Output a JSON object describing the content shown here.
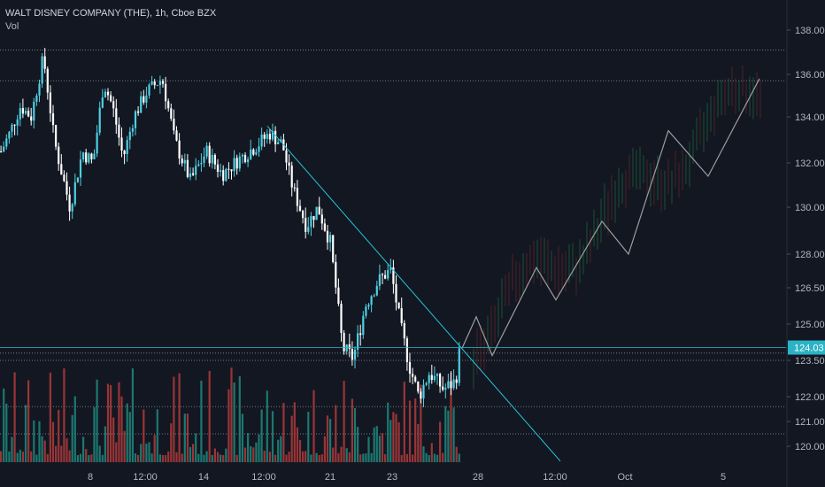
{
  "header": {
    "symbol_line": "WALT DISNEY COMPANY (THE), 1h, Cboe BZX",
    "volume_label": "Vol"
  },
  "colors": {
    "background": "#131722",
    "up": "#4dd0e1",
    "down": "#ffffff",
    "vol_up": "#1f8a7e",
    "vol_down": "#b23b3b",
    "trendline": "#26c6da",
    "projection": "#9e9e9e",
    "price_badge": "#2ab3c6",
    "grid": "#787b86",
    "text": "#b2b5be"
  },
  "chart_data": {
    "type": "candlestick",
    "title": "WALT DISNEY COMPANY (THE), 1h, Cboe BZX",
    "y_axis": {
      "ticks": [
        120.0,
        121.0,
        122.0,
        123.5,
        125.0,
        126.5,
        128.0,
        130.0,
        132.0,
        134.0,
        136.0,
        138.0
      ]
    },
    "x_axis": {
      "ticks": [
        "8",
        "12:00",
        "14",
        "12:00",
        "21",
        "23",
        "28",
        "12:00",
        "Oct",
        "5"
      ]
    },
    "current_price": "124.03",
    "horizontal_levels": [
      137.1,
      135.7,
      123.8,
      123.5,
      121.6,
      120.5
    ],
    "trendline": {
      "from_price": 133.6,
      "to_price": 119.4
    },
    "projection_path": [
      124.0,
      125.3,
      123.7,
      127.4,
      126.0,
      129.4,
      128.0,
      133.4,
      131.4,
      135.8
    ],
    "last_candle": {
      "open": 123.2,
      "high": 124.2,
      "low": 123.0,
      "close": 124.0
    }
  }
}
